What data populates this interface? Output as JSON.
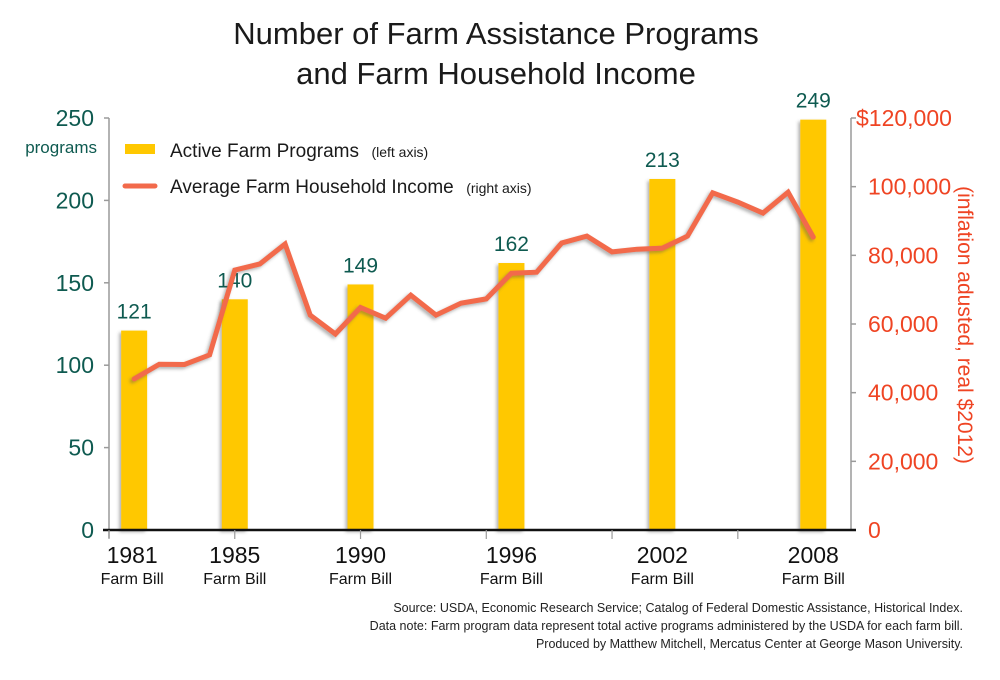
{
  "chart_data": {
    "type": "bar+line",
    "title": [
      "Number of Farm Assistance Programs",
      "and Farm Household Income"
    ],
    "x_range": [
      1980,
      2009.5
    ],
    "x_ticks": [
      1980,
      1985,
      1990,
      1995,
      2000,
      2005
    ],
    "left_axis": {
      "label": "programs",
      "range": [
        0,
        250
      ],
      "ticks": [
        0,
        50,
        100,
        150,
        200,
        250
      ],
      "tick_labels": [
        "0",
        "50",
        "100",
        "150",
        "200",
        "250"
      ]
    },
    "right_axis": {
      "label": "(inflation adusted, real $2012)",
      "range": [
        0,
        120000
      ],
      "ticks": [
        0,
        20000,
        40000,
        60000,
        80000,
        100000,
        120000
      ],
      "tick_labels": [
        "0",
        "20,000",
        "40,000",
        "60,000",
        "80,000",
        "100,000",
        "$120,000"
      ]
    },
    "categories": [
      {
        "year": "1981",
        "sub": "Farm Bill"
      },
      {
        "year": "1985",
        "sub": "Farm Bill"
      },
      {
        "year": "1990",
        "sub": "Farm Bill"
      },
      {
        "year": "1996",
        "sub": "Farm Bill"
      },
      {
        "year": "2002",
        "sub": "Farm Bill"
      },
      {
        "year": "2008",
        "sub": "Farm Bill"
      }
    ],
    "series": [
      {
        "name": "Active Farm Programs",
        "axis_note": "(left axis)",
        "type": "bar",
        "color": "#ffc800",
        "x": [
          1981,
          1985,
          1990,
          1996,
          2002,
          2008
        ],
        "values": [
          121,
          140,
          149,
          162,
          213,
          249
        ],
        "labels": [
          "121",
          "140",
          "149",
          "162",
          "213",
          "249"
        ]
      },
      {
        "name": "Average Farm Household Income",
        "axis_note": "(right axis)",
        "type": "line",
        "color": "#f26a4b",
        "x": [
          1981,
          1982,
          1983,
          1984,
          1985,
          1986,
          1987,
          1988,
          1989,
          1990,
          1991,
          1992,
          1993,
          1994,
          1995,
          1996,
          1997,
          1998,
          1999,
          2000,
          2001,
          2002,
          2003,
          2004,
          2005,
          2006,
          2007,
          2008
        ],
        "values": [
          44000,
          48300,
          48200,
          51000,
          75700,
          77500,
          83300,
          62600,
          57100,
          64800,
          61700,
          68400,
          62600,
          66100,
          67300,
          74800,
          75100,
          83600,
          85600,
          81000,
          81800,
          82100,
          85600,
          98200,
          95500,
          92300,
          98400,
          85300
        ]
      }
    ],
    "legend_position": "top-left",
    "grid": false
  },
  "footnotes": [
    "Source: USDA, Economic Research Service; Catalog of Federal Domestic Assistance, Historical Index.",
    "Data note: Farm program data represent total active programs administered by the USDA for each farm bill.",
    "Produced by Matthew Mitchell, Mercatus Center at George Mason University."
  ]
}
